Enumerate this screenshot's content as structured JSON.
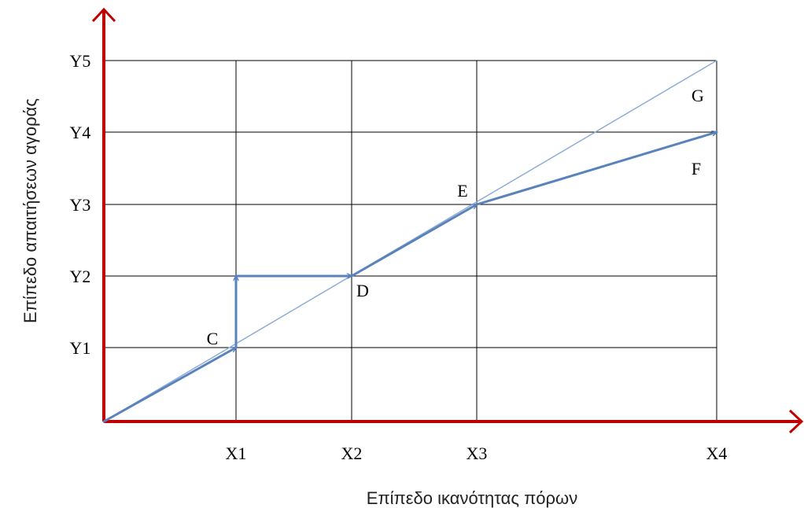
{
  "chart_data": {
    "type": "line",
    "xlabel": "Επίπεδο ικανότητας πόρων",
    "ylabel": "Επίπεδο απαιτήσεων αγοράς",
    "x_ticks": [
      "X1",
      "X2",
      "X3",
      "X4"
    ],
    "y_ticks": [
      "Y1",
      "Y2",
      "Y3",
      "Y4",
      "Y5"
    ],
    "grid": true,
    "colors": {
      "axis": "#c00000",
      "path": "#5a83be",
      "diagonal": "#8eaed6",
      "grid": "#000000"
    },
    "reference_line": {
      "from": [
        0,
        0
      ],
      "to": [
        "X4",
        "Y5"
      ]
    },
    "path": [
      {
        "from": [
          "O",
          "O"
        ],
        "to": [
          "X1",
          "Y1"
        ],
        "arrow": true
      },
      {
        "from": [
          "X1",
          "Y1"
        ],
        "to": [
          "X1",
          "Y2"
        ],
        "arrow": true
      },
      {
        "from": [
          "X1",
          "Y2"
        ],
        "to": [
          "X2",
          "Y2"
        ],
        "arrow": true
      },
      {
        "from": [
          "X2",
          "Y2"
        ],
        "to": [
          "X3",
          "Y3"
        ],
        "arrow": true
      },
      {
        "from": [
          "X3",
          "Y3"
        ],
        "to": [
          "X4",
          "Y4"
        ],
        "arrow": true
      }
    ],
    "points": [
      {
        "label": "C",
        "at": [
          "X1",
          "Y1"
        ]
      },
      {
        "label": "D",
        "at": [
          "X2",
          "Y2"
        ]
      },
      {
        "label": "E",
        "at": [
          "X3",
          "Y3"
        ]
      },
      {
        "label": "F",
        "at": [
          "X4",
          "Y4"
        ]
      },
      {
        "label": "G",
        "at": [
          "X4",
          "Y5"
        ]
      }
    ]
  }
}
